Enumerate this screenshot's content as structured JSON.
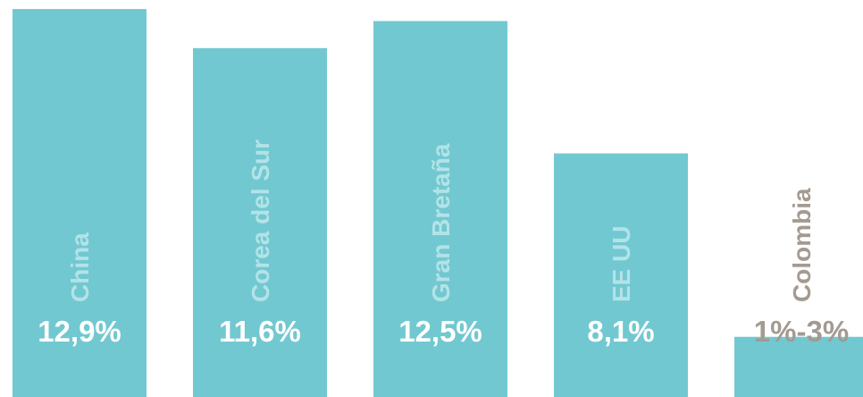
{
  "chart_data": {
    "type": "bar",
    "categories": [
      "China",
      "Corea del Sur",
      "Gran Bretaña",
      "EE UU",
      "Colombia"
    ],
    "values": [
      12.9,
      11.6,
      12.5,
      8.1,
      2
    ],
    "value_labels": [
      "12,9%",
      "11,6%",
      "12,5%",
      "8,1%",
      "1%-3%"
    ],
    "color": "#72c8d0",
    "ylim": [
      0,
      13.2
    ]
  }
}
